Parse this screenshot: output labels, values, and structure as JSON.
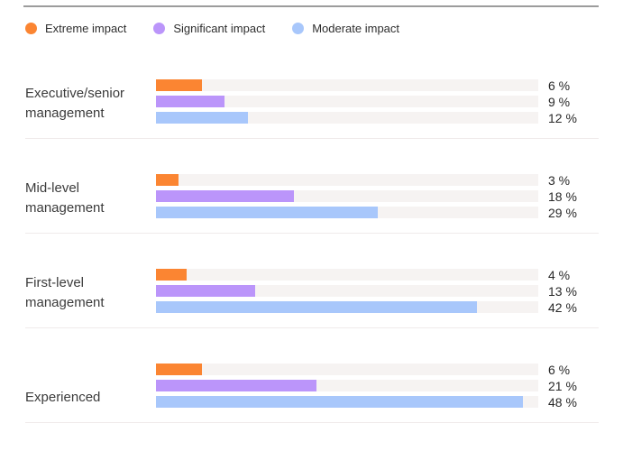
{
  "legend": {
    "items": [
      {
        "label": "Extreme impact",
        "color": "#fb8532"
      },
      {
        "label": "Significant impact",
        "color": "#bb95fa"
      },
      {
        "label": "Moderate impact",
        "color": "#a8c7fb"
      }
    ]
  },
  "chart_data": {
    "type": "bar",
    "orientation": "horizontal",
    "unit": "%",
    "axis_max": 50,
    "grid": false,
    "legend_position": "top",
    "categories": [
      "Executive/senior management",
      "Mid-level management",
      "First-level management",
      "Experienced"
    ],
    "series": [
      {
        "name": "Extreme impact",
        "color": "#fb8532",
        "values": [
          6,
          3,
          4,
          6
        ]
      },
      {
        "name": "Significant impact",
        "color": "#bb95fa",
        "values": [
          9,
          18,
          13,
          21
        ]
      },
      {
        "name": "Moderate impact",
        "color": "#a8c7fb",
        "values": [
          12,
          29,
          42,
          48
        ]
      }
    ],
    "groups": [
      {
        "label": "Executive/senior\nmanagement",
        "bars": [
          {
            "series": "Extreme impact",
            "value": 6,
            "label": "6 %"
          },
          {
            "series": "Significant impact",
            "value": 9,
            "label": "9 %"
          },
          {
            "series": "Moderate impact",
            "value": 12,
            "label": "12 %"
          }
        ]
      },
      {
        "label": "Mid-level\nmanagement",
        "bars": [
          {
            "series": "Extreme impact",
            "value": 3,
            "label": "3 %"
          },
          {
            "series": "Significant impact",
            "value": 18,
            "label": "18 %"
          },
          {
            "series": "Moderate impact",
            "value": 29,
            "label": "29 %"
          }
        ]
      },
      {
        "label": "First-level\nmanagement",
        "bars": [
          {
            "series": "Extreme impact",
            "value": 4,
            "label": "4 %"
          },
          {
            "series": "Significant impact",
            "value": 13,
            "label": "13 %"
          },
          {
            "series": "Moderate impact",
            "value": 42,
            "label": "42 %"
          }
        ]
      },
      {
        "label": "Experienced",
        "bars": [
          {
            "series": "Extreme impact",
            "value": 6,
            "label": "6 %"
          },
          {
            "series": "Significant impact",
            "value": 21,
            "label": "21 %"
          },
          {
            "series": "Moderate impact",
            "value": 48,
            "label": "48 %"
          }
        ]
      }
    ]
  }
}
